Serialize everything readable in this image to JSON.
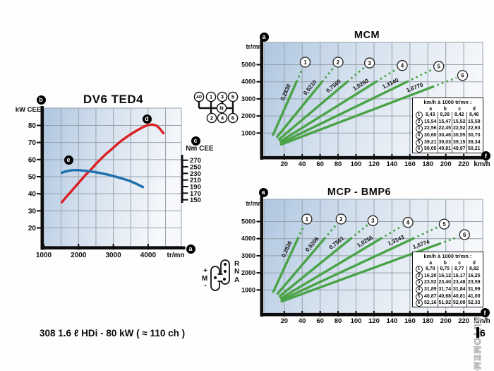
{
  "page": {
    "caption": "308 1.6 ℓ HDi - 80 kW ( ≈ 110 ch )",
    "page_marker": "6",
    "watermark": "AUTOMEMO"
  },
  "callouts": {
    "a": "a",
    "b": "b",
    "c": "c",
    "d": "d",
    "e": "e",
    "f": "f"
  },
  "shift_mcm": {
    "top": [
      "AR",
      "1",
      "3",
      "5"
    ],
    "neutral": "N",
    "bottom": [
      "2",
      "4",
      "6"
    ]
  },
  "shift_mcp": {
    "left": [
      "+",
      "M",
      "-"
    ],
    "right": [
      "R",
      "N",
      "A"
    ]
  },
  "colors": {
    "green": "#4ba348",
    "red": "#dc1f25",
    "blue": "#1d6fad",
    "grid": "#97a1ab"
  },
  "chart_data": [
    {
      "id": "dv6",
      "type": "line",
      "title": "DV6 TED4",
      "ylabel_left": "kW CEE",
      "ylabel_right": "Nm CEE",
      "xlabel": "tr/mn",
      "x_ticks": [
        1000,
        2000,
        3000,
        4000
      ],
      "y_ticks_left_kW": [
        20,
        30,
        40,
        50,
        60,
        70,
        80
      ],
      "y_ticks_right_Nm": [
        150,
        170,
        190,
        210,
        230,
        250,
        270
      ],
      "series": [
        {
          "name": "puissance",
          "unit": "kW",
          "color": "#dc1f25",
          "points": [
            [
              1520,
              35
            ],
            [
              1620,
              37.5
            ],
            [
              1750,
              40.5
            ],
            [
              1900,
              44
            ],
            [
              2050,
              47.5
            ],
            [
              2200,
              51
            ],
            [
              2350,
              54
            ],
            [
              2500,
              57.5
            ],
            [
              2650,
              60.5
            ],
            [
              2800,
              63.5
            ],
            [
              2950,
              66
            ],
            [
              3100,
              68.8
            ],
            [
              3250,
              71.3
            ],
            [
              3400,
              73.5
            ],
            [
              3550,
              75.5
            ],
            [
              3700,
              77.3
            ],
            [
              3850,
              79
            ],
            [
              4000,
              80.3
            ],
            [
              4120,
              80.5
            ],
            [
              4230,
              80
            ],
            [
              4330,
              78.2
            ],
            [
              4440,
              75.4
            ]
          ]
        },
        {
          "name": "couple",
          "unit": "Nm",
          "color": "#1d6fad",
          "points": [
            [
              1520,
              232
            ],
            [
              1650,
              236.5
            ],
            [
              1800,
              239.5
            ],
            [
              1950,
              240
            ],
            [
              2100,
              239
            ],
            [
              2250,
              237.5
            ],
            [
              2450,
              234.5
            ],
            [
              2650,
              230.5
            ],
            [
              2850,
              226
            ],
            [
              3050,
              220.5
            ],
            [
              3250,
              214.5
            ],
            [
              3450,
              208
            ],
            [
              3650,
              199
            ],
            [
              3850,
              188.5
            ]
          ]
        }
      ]
    },
    {
      "id": "mcm",
      "type": "line",
      "title": "MCM",
      "ylabel": "tr/mn",
      "xlabel": "km/h",
      "x_ticks": [
        20,
        40,
        60,
        80,
        100,
        120,
        140,
        160,
        180,
        200,
        220
      ],
      "y_ticks": [
        1000,
        2000,
        3000,
        4000,
        5000
      ],
      "gears": [
        {
          "n": "1",
          "ratio_label": "0,2830",
          "kmh_per_1000": 8.43
        },
        {
          "n": "2",
          "ratio_label": "0,5210",
          "kmh_per_1000": 15.54
        },
        {
          "n": "3",
          "ratio_label": "0,7560",
          "kmh_per_1000": 22.56
        },
        {
          "n": "4",
          "ratio_label": "1,0260",
          "kmh_per_1000": 30.6
        },
        {
          "n": "5",
          "ratio_label": "1,3140",
          "kmh_per_1000": 39.21
        },
        {
          "n": "6",
          "ratio_label": "1,6770",
          "kmh_per_1000": 50.05
        }
      ],
      "table": {
        "header": "km/h à 1000 tr/mn :",
        "columns": [
          "a",
          "b",
          "c",
          "d"
        ],
        "rows": [
          [
            "1",
            "8,43",
            "8,39",
            "8,42",
            "8,46"
          ],
          [
            "2",
            "15,54",
            "15,47",
            "15,52",
            "15,59"
          ],
          [
            "3",
            "22,56",
            "22,45",
            "22,52",
            "22,63"
          ],
          [
            "4",
            "30,60",
            "30,46",
            "30,55",
            "30,70"
          ],
          [
            "5",
            "39,21",
            "39,03",
            "39,15",
            "39,34"
          ],
          [
            "6",
            "50,05",
            "49,81",
            "49,97",
            "50,21"
          ]
        ]
      }
    },
    {
      "id": "mcp",
      "type": "line",
      "title": "MCP - BMP6",
      "ylabel": "tr/mn",
      "xlabel": "km/h",
      "x_ticks": [
        20,
        40,
        60,
        80,
        100,
        120,
        140,
        160,
        180,
        200,
        220
      ],
      "y_ticks": [
        1000,
        2000,
        3000,
        4000,
        5000
      ],
      "gears": [
        {
          "n": "1",
          "ratio_label": "0,2826",
          "kmh_per_1000": 8.79
        },
        {
          "n": "2",
          "ratio_label": "0,5206",
          "kmh_per_1000": 16.2
        },
        {
          "n": "3",
          "ratio_label": "0,7561",
          "kmh_per_1000": 23.52
        },
        {
          "n": "4",
          "ratio_label": "1,0256",
          "kmh_per_1000": 31.89
        },
        {
          "n": "5",
          "ratio_label": "1,3143",
          "kmh_per_1000": 40.87
        },
        {
          "n": "6",
          "ratio_label": "1,6774",
          "kmh_per_1000": 52.16
        }
      ],
      "table": {
        "header": "km/h à 1000 tr/mn :",
        "columns": [
          "a",
          "b",
          "c",
          "d"
        ],
        "rows": [
          [
            "1",
            "8,79",
            "8,75",
            "8,77",
            "8,82"
          ],
          [
            "2",
            "16,20",
            "16,12",
            "16,17",
            "16,25"
          ],
          [
            "3",
            "23,52",
            "23,40",
            "23,48",
            "23,59"
          ],
          [
            "4",
            "31,89",
            "31,74",
            "31,84",
            "31,99"
          ],
          [
            "5",
            "40,87",
            "40,68",
            "40,81",
            "41,00"
          ],
          [
            "6",
            "52,16",
            "51,92",
            "52,08",
            "52,33"
          ]
        ]
      }
    }
  ]
}
